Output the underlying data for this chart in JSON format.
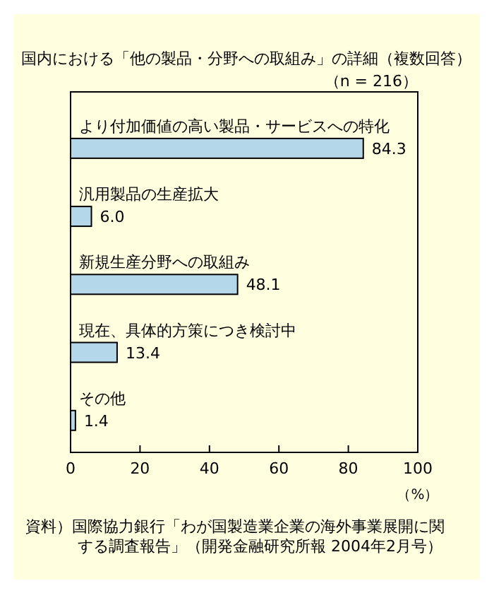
{
  "chart_data": {
    "type": "bar",
    "orientation": "horizontal",
    "title": "国内における「他の製品・分野への取組み」の詳細（複数回答）",
    "xlabel": "（%）",
    "categories": [
      "より付加価値の高い製品・サービスへの特化",
      "汎用製品の生産拡大",
      "新規生産分野への取組み",
      "現在、具体的方策につき検討中",
      "その他"
    ],
    "values": [
      84.3,
      6.0,
      48.1,
      13.4,
      1.4
    ],
    "value_labels": [
      "84.3",
      "6.0",
      "48.1",
      "13.4",
      "1.4"
    ],
    "color": "#b4d8ea",
    "xlim": [
      0,
      100
    ],
    "xticks": [
      0,
      20,
      40,
      60,
      80,
      100
    ],
    "annotations": [
      "（n = 216）",
      "資料）国際協力銀行「わが国製造業企業の海外事業展開に関する調査報告」（開発金融研究所報 2004年2月号）"
    ]
  }
}
